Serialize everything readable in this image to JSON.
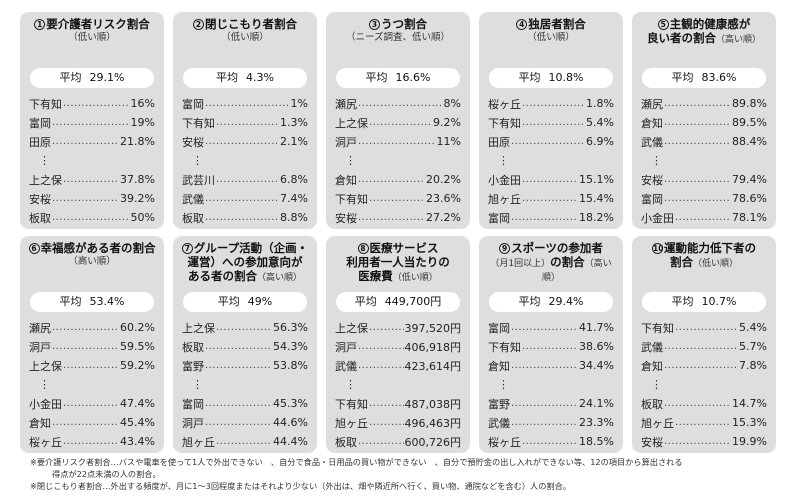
{
  "cards": [
    {
      "num": "1",
      "title": "要介護者リスク割合",
      "subtitle": "（低い順）",
      "avg_label": "平均",
      "avg_value": "29.1%",
      "top": [
        {
          "name": "下有知",
          "value": "16%"
        },
        {
          "name": "富岡",
          "value": "19%"
        },
        {
          "name": "田原",
          "value": "21.8%"
        }
      ],
      "ellipsis": "⋮",
      "bottom": [
        {
          "name": "上之保",
          "value": "37.8%"
        },
        {
          "name": "安桜",
          "value": "39.2%"
        },
        {
          "name": "板取",
          "value": "50%"
        }
      ]
    },
    {
      "num": "2",
      "title": "閉じこもり者割合",
      "subtitle": "（低い順）",
      "avg_label": "平均",
      "avg_value": "4.3%",
      "top": [
        {
          "name": "富岡",
          "value": "1%"
        },
        {
          "name": "下有知",
          "value": "1.3%"
        },
        {
          "name": "安桜",
          "value": "2.1%"
        }
      ],
      "ellipsis": "⋮",
      "bottom": [
        {
          "name": "武芸川",
          "value": "6.8%"
        },
        {
          "name": "武儀",
          "value": "7.4%"
        },
        {
          "name": "板取",
          "value": "8.8%"
        }
      ]
    },
    {
      "num": "3",
      "title": "うつ割合",
      "subtitle": "（ニーズ調査、低い順）",
      "avg_label": "平均",
      "avg_value": "16.6%",
      "top": [
        {
          "name": "瀬尻",
          "value": "8%"
        },
        {
          "name": "上之保",
          "value": "9.2%"
        },
        {
          "name": "洞戸",
          "value": "11%"
        }
      ],
      "ellipsis": "⋮",
      "bottom": [
        {
          "name": "倉知",
          "value": "20.2%"
        },
        {
          "name": "下有知",
          "value": "23.6%"
        },
        {
          "name": "安桜",
          "value": "27.2%"
        }
      ]
    },
    {
      "num": "4",
      "title": "独居者割合",
      "subtitle": "（低い順）",
      "avg_label": "平均",
      "avg_value": "10.8%",
      "top": [
        {
          "name": "桜ヶ丘",
          "value": "1.8%"
        },
        {
          "name": "下有知",
          "value": "5.4%"
        },
        {
          "name": "田原",
          "value": "6.9%"
        }
      ],
      "ellipsis": "⋮",
      "bottom": [
        {
          "name": "小金田",
          "value": "15.1%"
        },
        {
          "name": "旭ヶ丘",
          "value": "15.4%"
        },
        {
          "name": "富岡",
          "value": "18.2%"
        }
      ]
    },
    {
      "num": "5",
      "title": "主観的健康感が",
      "title2": "良い者の割合",
      "subtitle_inline": "（高い順）",
      "avg_label": "平均",
      "avg_value": "83.6%",
      "top": [
        {
          "name": "瀬尻",
          "value": "89.8%"
        },
        {
          "name": "倉知",
          "value": "89.5%"
        },
        {
          "name": "武儀",
          "value": "88.4%"
        }
      ],
      "ellipsis": "⋮",
      "bottom": [
        {
          "name": "安桜",
          "value": "79.4%"
        },
        {
          "name": "富岡",
          "value": "78.6%"
        },
        {
          "name": "小金田",
          "value": "78.1%"
        }
      ]
    },
    {
      "num": "6",
      "title": "幸福感がある者の割合",
      "subtitle": "（高い順）",
      "avg_label": "平均",
      "avg_value": "53.4%",
      "top": [
        {
          "name": "瀬尻",
          "value": "60.2%"
        },
        {
          "name": "洞戸",
          "value": "59.5%"
        },
        {
          "name": "上之保",
          "value": "59.2%"
        }
      ],
      "ellipsis": "⋮",
      "bottom": [
        {
          "name": "小金田",
          "value": "47.4%"
        },
        {
          "name": "倉知",
          "value": "45.4%"
        },
        {
          "name": "桜ヶ丘",
          "value": "43.4%"
        }
      ]
    },
    {
      "num": "7",
      "title": "グループ活動（企画・",
      "title2": "運営）への参加意向が",
      "title3": "ある者の割合",
      "subtitle_inline": "（高い順）",
      "avg_label": "平均",
      "avg_value": "49%",
      "top": [
        {
          "name": "上之保",
          "value": "56.3%"
        },
        {
          "name": "板取",
          "value": "54.3%"
        },
        {
          "name": "富野",
          "value": "53.8%"
        }
      ],
      "ellipsis": "⋮",
      "bottom": [
        {
          "name": "富岡",
          "value": "45.3%"
        },
        {
          "name": "洞戸",
          "value": "44.6%"
        },
        {
          "name": "旭ヶ丘",
          "value": "44.4%"
        }
      ]
    },
    {
      "num": "8",
      "title": "医療サービス",
      "title2": "利用者一人当たりの",
      "title3": "医療費",
      "subtitle_inline": "（低い順）",
      "avg_label": "平均",
      "avg_value": "449,700円",
      "top": [
        {
          "name": "上之保",
          "value": "397,520円"
        },
        {
          "name": "洞戸",
          "value": "406,918円"
        },
        {
          "name": "武儀",
          "value": "423,614円"
        }
      ],
      "ellipsis": "⋮",
      "bottom": [
        {
          "name": "下有知",
          "value": "487,038円"
        },
        {
          "name": "旭ヶ丘",
          "value": "496,463円"
        },
        {
          "name": "板取",
          "value": "600,726円"
        }
      ]
    },
    {
      "num": "9",
      "title": "スポーツの参加者",
      "pre2": "（月1回以上）",
      "title2": "の割合",
      "subtitle_inline": "（高い順）",
      "avg_label": "平均",
      "avg_value": "29.4%",
      "top": [
        {
          "name": "富岡",
          "value": "41.7%"
        },
        {
          "name": "下有知",
          "value": "38.6%"
        },
        {
          "name": "倉知",
          "value": "34.4%"
        }
      ],
      "ellipsis": "⋮",
      "bottom": [
        {
          "name": "富野",
          "value": "24.1%"
        },
        {
          "name": "武儀",
          "value": "23.3%"
        },
        {
          "name": "桜ヶ丘",
          "value": "18.5%"
        }
      ]
    },
    {
      "num": "10",
      "title": "運動能力低下者の",
      "title2": "割合",
      "subtitle_inline": "（低い順）",
      "avg_label": "平均",
      "avg_value": "10.7%",
      "top": [
        {
          "name": "下有知",
          "value": "5.4%"
        },
        {
          "name": "武儀",
          "value": "5.7%"
        },
        {
          "name": "倉知",
          "value": "7.8%"
        }
      ],
      "ellipsis": "⋮",
      "bottom": [
        {
          "name": "板取",
          "value": "14.7%"
        },
        {
          "name": "旭ヶ丘",
          "value": "15.3%"
        },
        {
          "name": "安桜",
          "value": "19.9%"
        }
      ]
    }
  ],
  "notes": [
    "※要介護リスク者割合…バスや電車を使って1人で外出できない　、自分で食品・日用品の買い物ができない　、自分で預貯金の出し入れができない等、12の項目から算出される",
    "得点が22点未満の人の割合。",
    "※閉じこもり者割合…外出する頻度が、月に1～3回程度またはそれより少ない（外出は、畑や隣近所へ行く、買い物、通院などを含む）人の割合。"
  ]
}
